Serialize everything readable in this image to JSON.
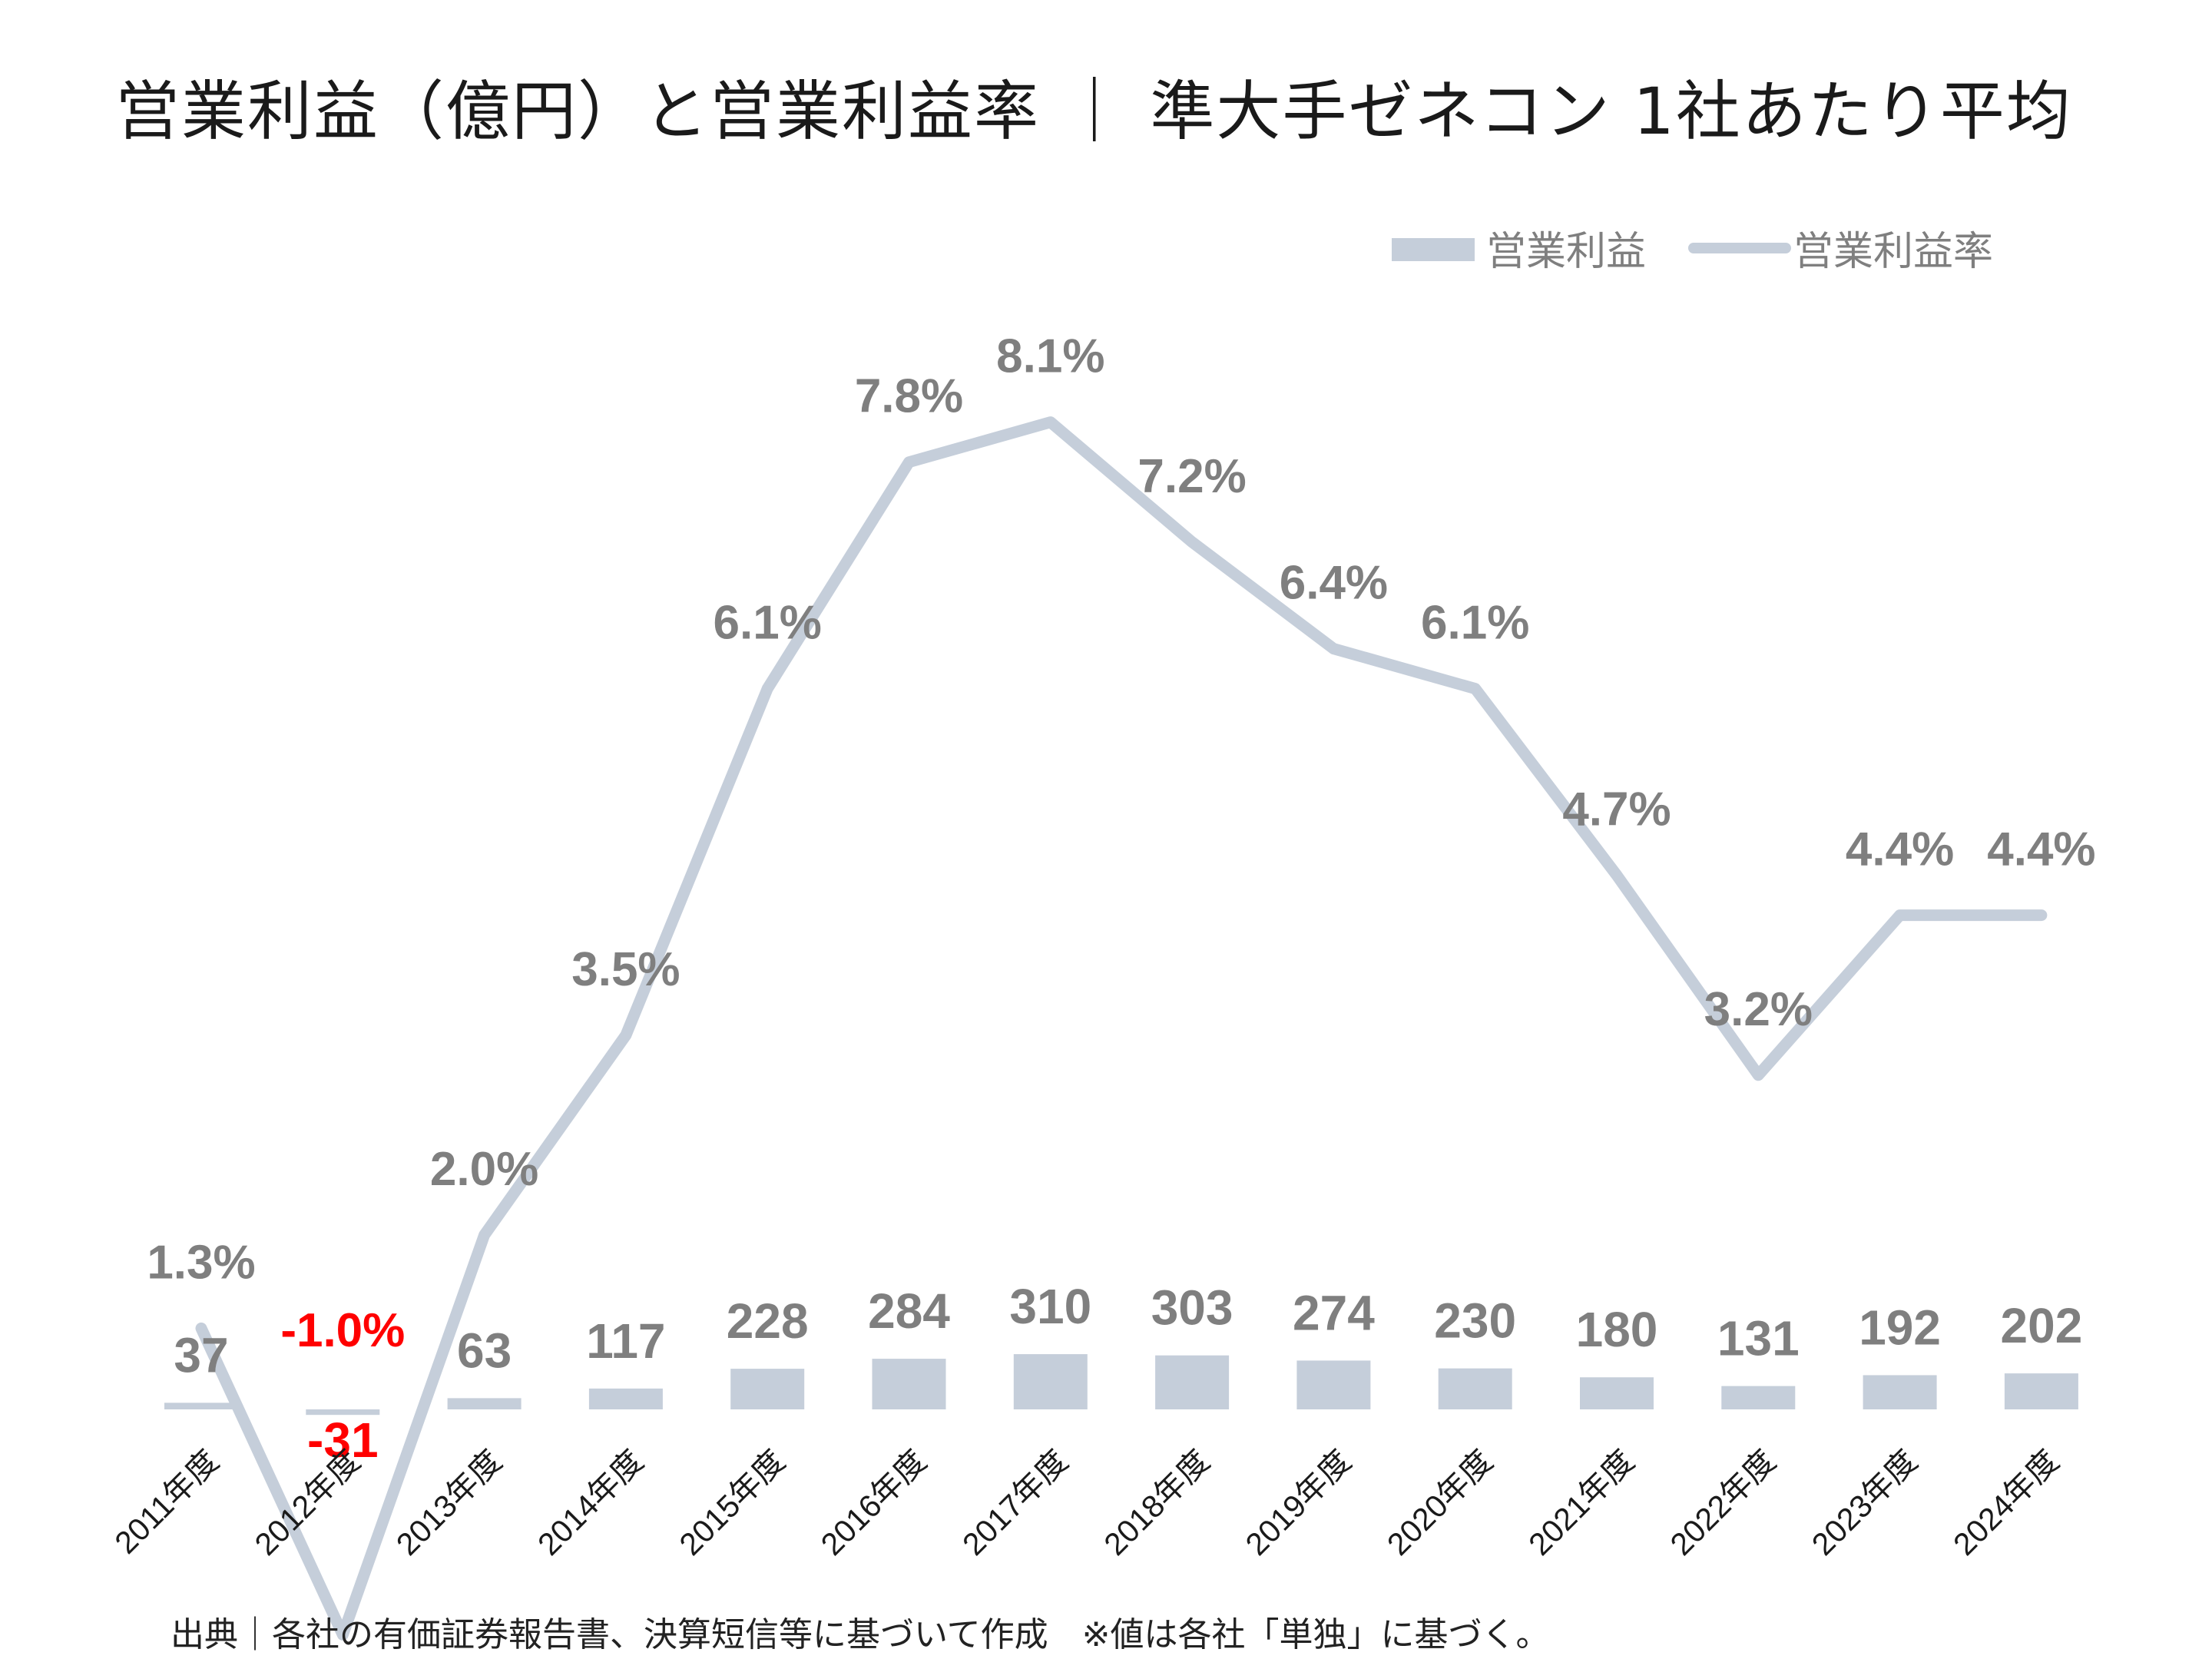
{
  "title": "営業利益（億円）と営業利益率 ｜ 準大手ゼネコン 1社あたり平均",
  "source": "出典｜各社の有価証券報告書、決算短信等に基づいて作成　※値は各社「単独」に基づく。",
  "colors": {
    "series": "#c5ceda",
    "label": "#7f7f7f",
    "negative": "#ff0000",
    "title": "#1a1a1a"
  },
  "chart_data": {
    "type": "bar+line",
    "title": "営業利益（億円）と営業利益率 ｜ 準大手ゼネコン 1社あたり平均",
    "categories": [
      "2011年度",
      "2012年度",
      "2013年度",
      "2014年度",
      "2015年度",
      "2016年度",
      "2017年度",
      "2018年度",
      "2019年度",
      "2020年度",
      "2021年度",
      "2022年度",
      "2023年度",
      "2024年度"
    ],
    "series": [
      {
        "name": "営業利益",
        "type": "bar",
        "axis": "left",
        "values": [
          37,
          -31,
          63,
          117,
          228,
          284,
          310,
          303,
          274,
          230,
          180,
          131,
          192,
          202
        ],
        "labels": [
          "37",
          "-31",
          "63",
          "117",
          "228",
          "284",
          "310",
          "303",
          "274",
          "230",
          "180",
          "131",
          "192",
          "202"
        ]
      },
      {
        "name": "営業利益率",
        "type": "line",
        "axis": "right",
        "values": [
          1.3,
          -1.0,
          2.0,
          3.5,
          6.1,
          7.8,
          8.1,
          7.2,
          6.4,
          6.1,
          4.7,
          3.2,
          4.4,
          4.4
        ],
        "labels": [
          "1.3%",
          "-1.0%",
          "2.0%",
          "3.5%",
          "6.1%",
          "7.8%",
          "8.1%",
          "7.2%",
          "6.4%",
          "6.1%",
          "4.7%",
          "3.2%",
          "4.4%",
          "4.4%"
        ]
      }
    ],
    "legend": {
      "position": "top-right",
      "entries": [
        "営業利益",
        "営業利益率"
      ]
    },
    "grid": false,
    "negative_label_color": "#ff0000"
  }
}
